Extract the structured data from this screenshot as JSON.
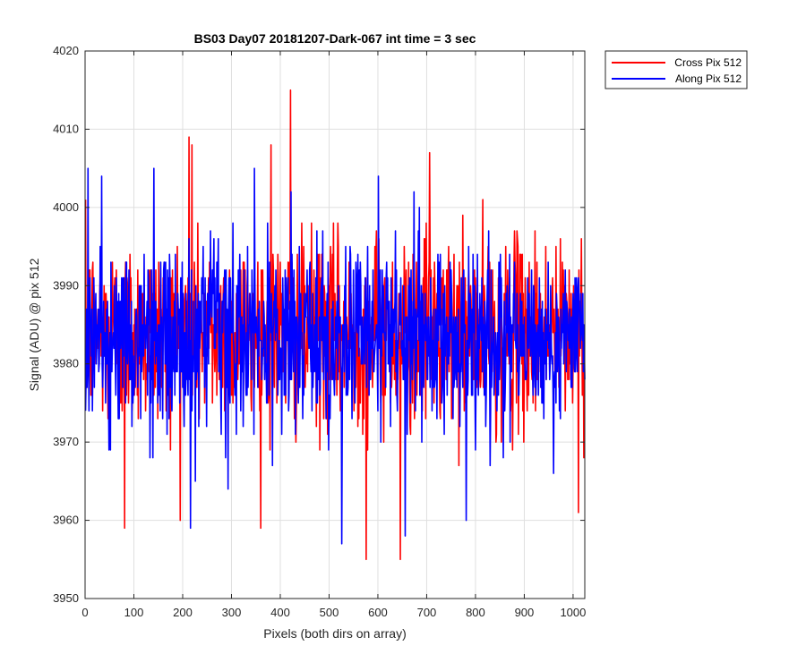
{
  "chart_data": {
    "type": "line",
    "title": "BS03 Day07 20181207-Dark-067 int time = 3 sec",
    "xlabel": "Pixels (both dirs on array)",
    "ylabel": "Signal (ADU) @ pix 512",
    "xlim": [
      0,
      1024
    ],
    "ylim": [
      3950,
      4020
    ],
    "xticks": [
      0,
      100,
      200,
      300,
      400,
      500,
      600,
      700,
      800,
      900,
      1000
    ],
    "yticks": [
      3950,
      3960,
      3970,
      3980,
      3990,
      4000,
      4010,
      4020
    ],
    "grid": true,
    "legend_position": "outside-top-right",
    "series": [
      {
        "name": "Cross Pix 512",
        "color": "#ff0000",
        "mean": 3984,
        "spread": 6,
        "min": 3955,
        "max": 4015,
        "spikes": [
          [
            80,
            3959
          ],
          [
            212,
            4009
          ],
          [
            218,
            4008
          ],
          [
            380,
            4008
          ],
          [
            420,
            4015
          ],
          [
            575,
            3955
          ],
          [
            645,
            3955
          ],
          [
            705,
            4007
          ],
          [
            1010,
            3961
          ]
        ]
      },
      {
        "name": "Along Pix 512",
        "color": "#0000ff",
        "mean": 3983,
        "spread": 6,
        "min": 3957,
        "max": 4005,
        "spikes": [
          [
            5,
            4005
          ],
          [
            140,
            4005
          ],
          [
            215,
            3959
          ],
          [
            525,
            3957
          ],
          [
            600,
            4004
          ],
          [
            655,
            3958
          ],
          [
            780,
            3960
          ]
        ]
      }
    ]
  }
}
